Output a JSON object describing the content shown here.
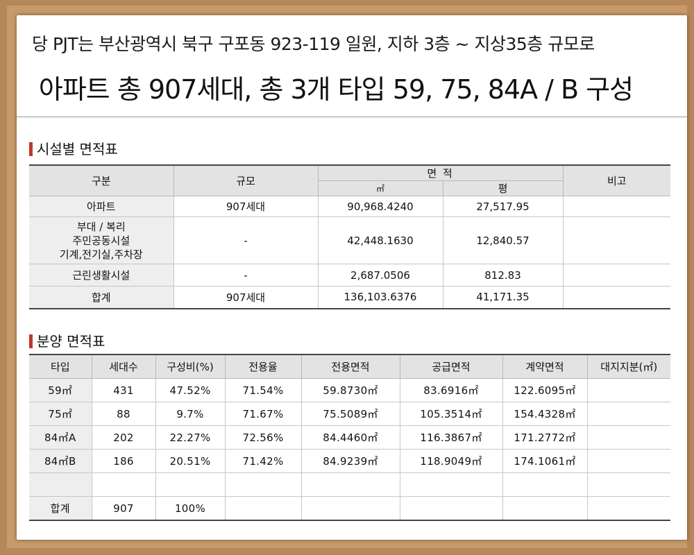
{
  "header": {
    "line1": "당 PJT는 부산광역시 북구 구포동 923-119 일원, 지하 3층 ~ 지상35층 규모로",
    "line2": "아파트 총 907세대, 총 3개 타입 59, 75, 84A / B 구성"
  },
  "facility_table": {
    "title": "시설별 면적표",
    "headers": {
      "category": "구분",
      "scale": "규모",
      "area": "면 적",
      "area_m2": "㎡",
      "area_pyeong": "평",
      "note": "비고"
    },
    "rows": [
      {
        "category": "아파트",
        "scale": "907세대",
        "m2": "90,968.4240",
        "pyeong": "27,517.95",
        "note": ""
      },
      {
        "category": "부대 / 복리\n주민공동시설\n기계,전기실,주차장",
        "scale": "-",
        "m2": "42,448.1630",
        "pyeong": "12,840.57",
        "note": ""
      },
      {
        "category": "근린생활시설",
        "scale": "-",
        "m2": "2,687.0506",
        "pyeong": "812.83",
        "note": ""
      },
      {
        "category": "합계",
        "scale": "907세대",
        "m2": "136,103.6376",
        "pyeong": "41,171.35",
        "note": ""
      }
    ]
  },
  "sales_table": {
    "title": "분양 면적표",
    "headers": [
      "타입",
      "세대수",
      "구성비(%)",
      "전용율",
      "전용면적",
      "공급면적",
      "계약면적",
      "대지지분(㎡)"
    ],
    "rows": [
      [
        "59㎡",
        "431",
        "47.52%",
        "71.54%",
        "59.8730㎡",
        "83.6916㎡",
        "122.6095㎡",
        ""
      ],
      [
        "75㎡",
        "88",
        "9.7%",
        "71.67%",
        "75.5089㎡",
        "105.3514㎡",
        "154.4328㎡",
        ""
      ],
      [
        "84㎡A",
        "202",
        "22.27%",
        "72.56%",
        "84.4460㎡",
        "116.3867㎡",
        "171.2772㎡",
        ""
      ],
      [
        "84㎡B",
        "186",
        "20.51%",
        "71.42%",
        "84.9239㎡",
        "118.9049㎡",
        "174.1061㎡",
        ""
      ],
      [
        "",
        "",
        "",
        "",
        "",
        "",
        "",
        ""
      ],
      [
        "합계",
        "907",
        "100%",
        "",
        "",
        "",
        "",
        ""
      ]
    ]
  }
}
